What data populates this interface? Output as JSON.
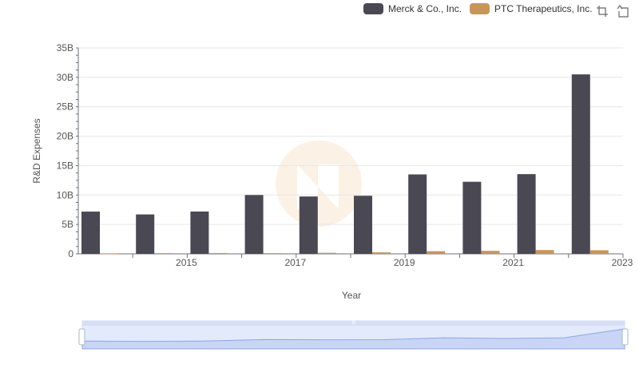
{
  "legend": [
    {
      "name": "Merck & Co., Inc.",
      "color": "#4a4853"
    },
    {
      "name": "PTC Therapeutics, Inc.",
      "color": "#c8955c"
    }
  ],
  "toolbox": {
    "icons": [
      "zoom-icon",
      "zoom-reset-icon"
    ]
  },
  "chart_data": {
    "type": "bar",
    "x": [
      2014,
      2015,
      2016,
      2017,
      2018,
      2019,
      2020,
      2021,
      2022,
      2023
    ],
    "xticks": [
      "2015",
      "2017",
      "2019",
      "2021",
      "2023"
    ],
    "xlabel": "Year",
    "ylabel": "R&D Expenses",
    "ylim": [
      0,
      35000000000
    ],
    "yticks": [
      "0",
      "5B",
      "10B",
      "15B",
      "20B",
      "25B",
      "30B",
      "35B"
    ],
    "grid": true,
    "legend_position": "top-right",
    "series": [
      {
        "name": "Merck & Co., Inc.",
        "color": "#4a4853",
        "values": [
          7180000000,
          6700000000,
          7190000000,
          10000000000,
          9750000000,
          9870000000,
          13500000000,
          12250000000,
          13550000000,
          30500000000
        ]
      },
      {
        "name": "PTC Therapeutics, Inc.",
        "color": "#c8955c",
        "values": [
          90000000,
          120000000,
          140000000,
          120000000,
          180000000,
          260000000,
          450000000,
          510000000,
          650000000,
          610000000
        ]
      }
    ]
  },
  "datazoom": {
    "handle_label": "III"
  }
}
